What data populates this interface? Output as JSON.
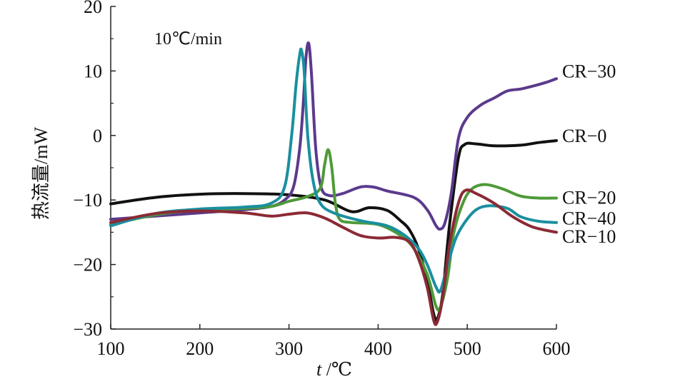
{
  "chart_data": {
    "type": "line",
    "title": "",
    "annotation": "10℃/min",
    "xlabel_italic": "t",
    "xlabel_rest": " /℃",
    "ylabel": "热流量/mW",
    "xlim": [
      100,
      600
    ],
    "ylim": [
      -30,
      20
    ],
    "x_ticks": [
      100,
      200,
      300,
      400,
      500,
      600
    ],
    "y_ticks": [
      20,
      10,
      0,
      -10,
      -20,
      -30
    ],
    "y_tick_labels": [
      "20",
      "10",
      "0",
      "−10",
      "−20",
      "−30"
    ],
    "grid": false,
    "series": [
      {
        "name": "CR−0",
        "color": "#111111",
        "points": [
          [
            100,
            -10.6
          ],
          [
            150,
            -9.6
          ],
          [
            200,
            -9.1
          ],
          [
            250,
            -9.0
          ],
          [
            300,
            -9.2
          ],
          [
            340,
            -10.0
          ],
          [
            370,
            -11.8
          ],
          [
            390,
            -11.2
          ],
          [
            410,
            -11.6
          ],
          [
            425,
            -13.2
          ],
          [
            435,
            -14.6
          ],
          [
            445,
            -17.5
          ],
          [
            455,
            -22.5
          ],
          [
            462,
            -27.5
          ],
          [
            466,
            -28.5
          ],
          [
            472,
            -25.0
          ],
          [
            480,
            -14.0
          ],
          [
            490,
            -3.5
          ],
          [
            497,
            -1.4
          ],
          [
            510,
            -1.3
          ],
          [
            530,
            -1.6
          ],
          [
            560,
            -1.5
          ],
          [
            580,
            -1.1
          ],
          [
            600,
            -0.8
          ]
        ]
      },
      {
        "name": "CR−30",
        "color": "#5b3a8c",
        "points": [
          [
            100,
            -13.0
          ],
          [
            150,
            -12.5
          ],
          [
            200,
            -12.0
          ],
          [
            250,
            -11.5
          ],
          [
            280,
            -11.0
          ],
          [
            295,
            -10.0
          ],
          [
            305,
            -8.0
          ],
          [
            312,
            -2.0
          ],
          [
            316,
            5.0
          ],
          [
            319,
            12.0
          ],
          [
            322,
            14.3
          ],
          [
            325,
            10.0
          ],
          [
            330,
            -2.0
          ],
          [
            336,
            -8.0
          ],
          [
            345,
            -9.3
          ],
          [
            360,
            -9.0
          ],
          [
            380,
            -8.0
          ],
          [
            395,
            -8.0
          ],
          [
            410,
            -8.6
          ],
          [
            440,
            -9.6
          ],
          [
            455,
            -11.5
          ],
          [
            465,
            -14.0
          ],
          [
            470,
            -14.5
          ],
          [
            475,
            -13.5
          ],
          [
            482,
            -9.0
          ],
          [
            490,
            -0.5
          ],
          [
            500,
            2.8
          ],
          [
            515,
            4.7
          ],
          [
            530,
            5.8
          ],
          [
            545,
            6.9
          ],
          [
            560,
            7.2
          ],
          [
            575,
            7.7
          ],
          [
            590,
            8.3
          ],
          [
            600,
            8.8
          ]
        ]
      },
      {
        "name": "CR−20",
        "color": "#4e9a3a",
        "points": [
          [
            100,
            -13.8
          ],
          [
            150,
            -12.3
          ],
          [
            200,
            -11.5
          ],
          [
            250,
            -11.3
          ],
          [
            280,
            -11.0
          ],
          [
            300,
            -10.2
          ],
          [
            320,
            -9.5
          ],
          [
            335,
            -8.2
          ],
          [
            340,
            -4.5
          ],
          [
            344,
            -2.2
          ],
          [
            348,
            -5.0
          ],
          [
            352,
            -10.5
          ],
          [
            357,
            -13.0
          ],
          [
            370,
            -13.5
          ],
          [
            400,
            -13.8
          ],
          [
            425,
            -15.5
          ],
          [
            440,
            -17.5
          ],
          [
            455,
            -21.5
          ],
          [
            465,
            -26.5
          ],
          [
            470,
            -26.5
          ],
          [
            478,
            -22.0
          ],
          [
            485,
            -15.0
          ],
          [
            495,
            -10.5
          ],
          [
            505,
            -8.3
          ],
          [
            520,
            -7.6
          ],
          [
            540,
            -8.3
          ],
          [
            560,
            -9.4
          ],
          [
            580,
            -9.7
          ],
          [
            600,
            -9.7
          ]
        ]
      },
      {
        "name": "CR−40",
        "color": "#1a8f9f",
        "points": [
          [
            100,
            -14.0
          ],
          [
            150,
            -12.1
          ],
          [
            200,
            -11.4
          ],
          [
            250,
            -11.1
          ],
          [
            280,
            -10.5
          ],
          [
            295,
            -8.0
          ],
          [
            303,
            0.0
          ],
          [
            308,
            8.0
          ],
          [
            312,
            12.5
          ],
          [
            314,
            13.2
          ],
          [
            317,
            10.0
          ],
          [
            321,
            0.0
          ],
          [
            327,
            -7.0
          ],
          [
            335,
            -10.5
          ],
          [
            350,
            -12.0
          ],
          [
            380,
            -13.2
          ],
          [
            410,
            -14.0
          ],
          [
            430,
            -15.5
          ],
          [
            445,
            -17.5
          ],
          [
            455,
            -20.0
          ],
          [
            465,
            -23.5
          ],
          [
            470,
            -24.0
          ],
          [
            478,
            -20.0
          ],
          [
            487,
            -16.0
          ],
          [
            497,
            -13.5
          ],
          [
            510,
            -11.5
          ],
          [
            525,
            -10.9
          ],
          [
            545,
            -11.3
          ],
          [
            560,
            -12.6
          ],
          [
            580,
            -13.3
          ],
          [
            600,
            -13.5
          ]
        ]
      },
      {
        "name": "CR−10",
        "color": "#8b2a35",
        "points": [
          [
            100,
            -13.5
          ],
          [
            150,
            -12.1
          ],
          [
            200,
            -11.7
          ],
          [
            250,
            -12.0
          ],
          [
            280,
            -12.5
          ],
          [
            300,
            -12.2
          ],
          [
            320,
            -12.0
          ],
          [
            340,
            -12.8
          ],
          [
            360,
            -14.2
          ],
          [
            380,
            -15.5
          ],
          [
            400,
            -15.9
          ],
          [
            420,
            -15.8
          ],
          [
            435,
            -16.5
          ],
          [
            445,
            -19.0
          ],
          [
            455,
            -23.5
          ],
          [
            462,
            -28.5
          ],
          [
            466,
            -29.0
          ],
          [
            472,
            -25.5
          ],
          [
            480,
            -17.0
          ],
          [
            490,
            -10.5
          ],
          [
            498,
            -8.5
          ],
          [
            510,
            -9.0
          ],
          [
            530,
            -10.5
          ],
          [
            550,
            -12.5
          ],
          [
            570,
            -14.0
          ],
          [
            585,
            -14.6
          ],
          [
            600,
            -15.0
          ]
        ]
      }
    ],
    "label_order": [
      "CR−30",
      "CR−0",
      "CR−20",
      "CR−40",
      "CR−10"
    ],
    "label_positions": [
      10,
      0,
      -9.6,
      -12.8,
      -15.6
    ]
  }
}
